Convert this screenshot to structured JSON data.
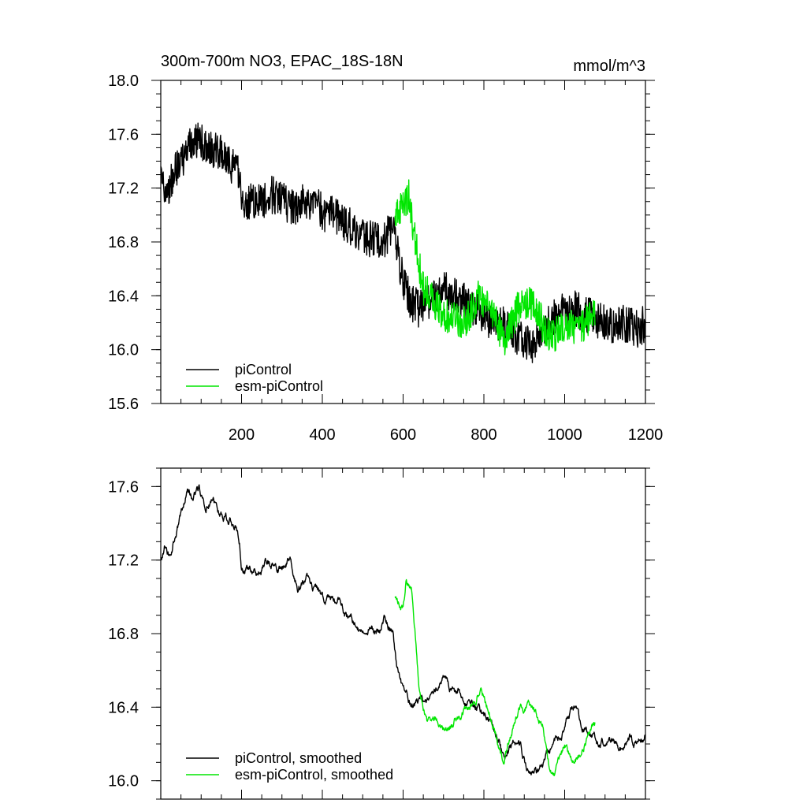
{
  "chart_data": [
    {
      "type": "line",
      "title": "300m-700m NO3, EPAC_18S-18N",
      "units": "mmol/m^3",
      "xlim": [
        0,
        1200
      ],
      "ylim": [
        15.6,
        18.0
      ],
      "xticks": [
        "200",
        "400",
        "600",
        "800",
        "1000",
        "1200"
      ],
      "yticks": [
        "15.6",
        "16.0",
        "16.4",
        "16.8",
        "17.2",
        "17.6",
        "18.0"
      ],
      "grid": false,
      "legend_position": "bottom-left",
      "series": [
        {
          "name": "piControl",
          "color": "#000000",
          "noise": 0.14,
          "points": [
            [
              0,
              17.25
            ],
            [
              20,
              17.2
            ],
            [
              40,
              17.35
            ],
            [
              60,
              17.45
            ],
            [
              80,
              17.55
            ],
            [
              100,
              17.55
            ],
            [
              120,
              17.5
            ],
            [
              140,
              17.48
            ],
            [
              160,
              17.42
            ],
            [
              180,
              17.35
            ],
            [
              195,
              17.3
            ],
            [
              200,
              17.1
            ],
            [
              225,
              17.1
            ],
            [
              250,
              17.1
            ],
            [
              275,
              17.15
            ],
            [
              300,
              17.12
            ],
            [
              325,
              17.05
            ],
            [
              350,
              17.1
            ],
            [
              375,
              17.1
            ],
            [
              400,
              17.02
            ],
            [
              425,
              17.0
            ],
            [
              450,
              16.95
            ],
            [
              475,
              16.9
            ],
            [
              500,
              16.85
            ],
            [
              525,
              16.82
            ],
            [
              550,
              16.8
            ],
            [
              570,
              16.9
            ],
            [
              580,
              16.85
            ],
            [
              600,
              16.5
            ],
            [
              620,
              16.35
            ],
            [
              640,
              16.3
            ],
            [
              660,
              16.35
            ],
            [
              680,
              16.42
            ],
            [
              700,
              16.45
            ],
            [
              720,
              16.4
            ],
            [
              740,
              16.38
            ],
            [
              760,
              16.35
            ],
            [
              780,
              16.3
            ],
            [
              800,
              16.25
            ],
            [
              820,
              16.2
            ],
            [
              840,
              16.2
            ],
            [
              860,
              16.15
            ],
            [
              880,
              16.1
            ],
            [
              900,
              16.05
            ],
            [
              920,
              16.03
            ],
            [
              940,
              16.1
            ],
            [
              960,
              16.2
            ],
            [
              980,
              16.25
            ],
            [
              1000,
              16.3
            ],
            [
              1020,
              16.32
            ],
            [
              1040,
              16.28
            ],
            [
              1060,
              16.25
            ],
            [
              1080,
              16.22
            ],
            [
              1100,
              16.2
            ],
            [
              1120,
              16.18
            ],
            [
              1140,
              16.2
            ],
            [
              1160,
              16.18
            ],
            [
              1180,
              16.15
            ],
            [
              1200,
              16.2
            ]
          ]
        },
        {
          "name": "esm-piControl",
          "color": "#00e600",
          "noise": 0.13,
          "points": [
            [
              580,
              17.0
            ],
            [
              600,
              17.05
            ],
            [
              615,
              17.15
            ],
            [
              630,
              16.8
            ],
            [
              650,
              16.45
            ],
            [
              670,
              16.4
            ],
            [
              690,
              16.3
            ],
            [
              710,
              16.25
            ],
            [
              730,
              16.22
            ],
            [
              750,
              16.2
            ],
            [
              770,
              16.3
            ],
            [
              790,
              16.4
            ],
            [
              810,
              16.3
            ],
            [
              830,
              16.2
            ],
            [
              850,
              16.08
            ],
            [
              870,
              16.2
            ],
            [
              890,
              16.35
            ],
            [
              910,
              16.35
            ],
            [
              930,
              16.3
            ],
            [
              950,
              16.15
            ],
            [
              970,
              16.1
            ],
            [
              990,
              16.15
            ],
            [
              1010,
              16.2
            ],
            [
              1030,
              16.15
            ],
            [
              1050,
              16.2
            ],
            [
              1075,
              16.25
            ]
          ]
        }
      ]
    },
    {
      "type": "line",
      "title": "",
      "xlim": [
        0,
        1200
      ],
      "ylim": [
        15.9,
        17.7
      ],
      "yticks": [
        "16.0",
        "16.4",
        "16.8",
        "17.2",
        "17.6"
      ],
      "grid": false,
      "legend_position": "bottom-left",
      "series": [
        {
          "name": "piControl, smoothed",
          "color": "#000000",
          "noise": 0.03,
          "points": [
            [
              0,
              17.2
            ],
            [
              10,
              17.27
            ],
            [
              20,
              17.22
            ],
            [
              30,
              17.3
            ],
            [
              50,
              17.45
            ],
            [
              65,
              17.58
            ],
            [
              80,
              17.55
            ],
            [
              95,
              17.6
            ],
            [
              110,
              17.5
            ],
            [
              130,
              17.52
            ],
            [
              150,
              17.45
            ],
            [
              170,
              17.42
            ],
            [
              185,
              17.4
            ],
            [
              195,
              17.3
            ],
            [
              200,
              17.15
            ],
            [
              220,
              17.15
            ],
            [
              240,
              17.1
            ],
            [
              260,
              17.2
            ],
            [
              280,
              17.15
            ],
            [
              300,
              17.15
            ],
            [
              320,
              17.2
            ],
            [
              340,
              17.05
            ],
            [
              360,
              17.1
            ],
            [
              380,
              17.05
            ],
            [
              400,
              17.0
            ],
            [
              420,
              16.98
            ],
            [
              440,
              17.0
            ],
            [
              460,
              16.9
            ],
            [
              480,
              16.85
            ],
            [
              500,
              16.8
            ],
            [
              520,
              16.85
            ],
            [
              540,
              16.8
            ],
            [
              555,
              16.9
            ],
            [
              565,
              16.85
            ],
            [
              575,
              16.8
            ],
            [
              585,
              16.6
            ],
            [
              600,
              16.5
            ],
            [
              610,
              16.45
            ],
            [
              620,
              16.4
            ],
            [
              640,
              16.45
            ],
            [
              660,
              16.42
            ],
            [
              680,
              16.5
            ],
            [
              700,
              16.55
            ],
            [
              720,
              16.5
            ],
            [
              740,
              16.48
            ],
            [
              760,
              16.42
            ],
            [
              780,
              16.4
            ],
            [
              800,
              16.35
            ],
            [
              820,
              16.3
            ],
            [
              840,
              16.2
            ],
            [
              850,
              16.1
            ],
            [
              870,
              16.2
            ],
            [
              890,
              16.18
            ],
            [
              910,
              16.05
            ],
            [
              930,
              16.04
            ],
            [
              950,
              16.1
            ],
            [
              970,
              16.2
            ],
            [
              990,
              16.25
            ],
            [
              1010,
              16.35
            ],
            [
              1025,
              16.4
            ],
            [
              1040,
              16.3
            ],
            [
              1060,
              16.25
            ],
            [
              1080,
              16.2
            ],
            [
              1100,
              16.22
            ],
            [
              1120,
              16.2
            ],
            [
              1140,
              16.18
            ],
            [
              1160,
              16.25
            ],
            [
              1180,
              16.18
            ],
            [
              1200,
              16.25
            ]
          ]
        },
        {
          "name": "esm-piControl, smoothed",
          "color": "#00e600",
          "noise": 0.03,
          "points": [
            [
              580,
              17.0
            ],
            [
              590,
              16.95
            ],
            [
              600,
              16.93
            ],
            [
              608,
              17.1
            ],
            [
              620,
              17.05
            ],
            [
              630,
              16.8
            ],
            [
              640,
              16.5
            ],
            [
              650,
              16.42
            ],
            [
              660,
              16.3
            ],
            [
              680,
              16.35
            ],
            [
              700,
              16.28
            ],
            [
              720,
              16.3
            ],
            [
              740,
              16.35
            ],
            [
              760,
              16.4
            ],
            [
              780,
              16.45
            ],
            [
              790,
              16.5
            ],
            [
              800,
              16.45
            ],
            [
              810,
              16.4
            ],
            [
              830,
              16.25
            ],
            [
              850,
              16.1
            ],
            [
              860,
              16.2
            ],
            [
              875,
              16.3
            ],
            [
              890,
              16.4
            ],
            [
              910,
              16.4
            ],
            [
              930,
              16.38
            ],
            [
              945,
              16.3
            ],
            [
              960,
              16.1
            ],
            [
              975,
              16.05
            ],
            [
              990,
              16.15
            ],
            [
              1000,
              16.2
            ],
            [
              1020,
              16.1
            ],
            [
              1040,
              16.15
            ],
            [
              1060,
              16.25
            ],
            [
              1075,
              16.3
            ]
          ]
        }
      ]
    }
  ]
}
